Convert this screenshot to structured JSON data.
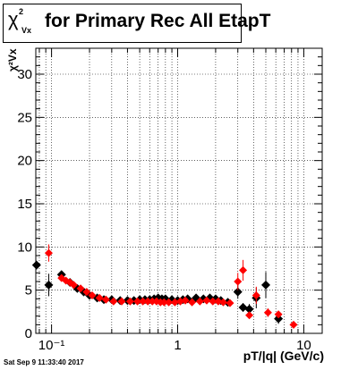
{
  "title": {
    "symbol": "χ",
    "superscript": "2",
    "subscript": "Vx",
    "text": "for Primary Rec All EtapT"
  },
  "ylabel": "χ²Vx",
  "xlabel": "pT/|q| (GeV/c)",
  "datestamp": "Sat Sep  9 11:33:40 2017",
  "colors": {
    "series_black": "#000000",
    "series_red": "#ff0000",
    "grid": "#000000"
  },
  "chart_data": {
    "type": "scatter",
    "xscale": "log",
    "xlim": [
      0.075,
      14
    ],
    "ylim": [
      0,
      33
    ],
    "yticks": [
      0,
      5,
      10,
      15,
      20,
      25,
      30
    ],
    "xtick_labels": [
      {
        "value": 0.1,
        "label": "10⁻¹"
      },
      {
        "value": 1,
        "label": "1"
      },
      {
        "value": 10,
        "label": "10"
      }
    ],
    "grid": true,
    "series": [
      {
        "color": "#000000",
        "marker": "diamond",
        "points": [
          {
            "x": 0.076,
            "y": 7.9,
            "err": 0.5
          },
          {
            "x": 0.095,
            "y": 5.6,
            "err": 1.3
          },
          {
            "x": 0.12,
            "y": 6.8,
            "err": 0.3
          },
          {
            "x": 0.14,
            "y": 5.9,
            "err": 0.3
          },
          {
            "x": 0.16,
            "y": 5.2,
            "err": 0.2
          },
          {
            "x": 0.18,
            "y": 4.8,
            "err": 0.2
          },
          {
            "x": 0.2,
            "y": 4.4,
            "err": 0.2
          },
          {
            "x": 0.23,
            "y": 4.1,
            "err": 0.2
          },
          {
            "x": 0.26,
            "y": 3.9,
            "err": 0.2
          },
          {
            "x": 0.3,
            "y": 3.9,
            "err": 0.2
          },
          {
            "x": 0.35,
            "y": 3.8,
            "err": 0.2
          },
          {
            "x": 0.4,
            "y": 3.8,
            "err": 0.2
          },
          {
            "x": 0.45,
            "y": 3.8,
            "err": 0.2
          },
          {
            "x": 0.5,
            "y": 3.9,
            "err": 0.2
          },
          {
            "x": 0.55,
            "y": 3.9,
            "err": 0.2
          },
          {
            "x": 0.6,
            "y": 3.9,
            "err": 0.2
          },
          {
            "x": 0.65,
            "y": 4.0,
            "err": 0.2
          },
          {
            "x": 0.7,
            "y": 4.1,
            "err": 0.2
          },
          {
            "x": 0.75,
            "y": 4.0,
            "err": 0.2
          },
          {
            "x": 0.8,
            "y": 4.0,
            "err": 0.2
          },
          {
            "x": 0.9,
            "y": 3.9,
            "err": 0.2
          },
          {
            "x": 1.0,
            "y": 3.8,
            "err": 0.2
          },
          {
            "x": 1.1,
            "y": 3.9,
            "err": 0.2
          },
          {
            "x": 1.2,
            "y": 4.0,
            "err": 0.2
          },
          {
            "x": 1.4,
            "y": 4.1,
            "err": 0.2
          },
          {
            "x": 1.6,
            "y": 4.0,
            "err": 0.2
          },
          {
            "x": 1.8,
            "y": 4.1,
            "err": 0.2
          },
          {
            "x": 2.0,
            "y": 4.0,
            "err": 0.2
          },
          {
            "x": 2.2,
            "y": 3.8,
            "err": 0.2
          },
          {
            "x": 2.5,
            "y": 3.6,
            "err": 0.3
          },
          {
            "x": 3.0,
            "y": 4.8,
            "err": 0.8
          },
          {
            "x": 3.3,
            "y": 3.0,
            "err": 0.5
          },
          {
            "x": 3.7,
            "y": 2.8,
            "err": 0.6
          },
          {
            "x": 4.2,
            "y": 4.1,
            "err": 1.2
          },
          {
            "x": 5.0,
            "y": 5.6,
            "err": 1.5
          },
          {
            "x": 6.3,
            "y": 1.7,
            "err": 0.6
          }
        ]
      },
      {
        "color": "#ff0000",
        "marker": "circle",
        "points": [
          {
            "x": 0.095,
            "y": 9.3,
            "err": 1.0
          },
          {
            "x": 0.12,
            "y": 6.4,
            "err": 0.3
          },
          {
            "x": 0.13,
            "y": 6.1,
            "err": 0.3
          },
          {
            "x": 0.14,
            "y": 5.9,
            "err": 0.2
          },
          {
            "x": 0.15,
            "y": 5.6,
            "err": 0.2
          },
          {
            "x": 0.17,
            "y": 5.2,
            "err": 0.2
          },
          {
            "x": 0.19,
            "y": 4.8,
            "err": 0.2
          },
          {
            "x": 0.21,
            "y": 4.4,
            "err": 0.2
          },
          {
            "x": 0.24,
            "y": 4.1,
            "err": 0.2
          },
          {
            "x": 0.27,
            "y": 3.9,
            "err": 0.2
          },
          {
            "x": 0.31,
            "y": 3.7,
            "err": 0.2
          },
          {
            "x": 0.36,
            "y": 3.7,
            "err": 0.2
          },
          {
            "x": 0.42,
            "y": 3.7,
            "err": 0.2
          },
          {
            "x": 0.48,
            "y": 3.7,
            "err": 0.2
          },
          {
            "x": 0.53,
            "y": 3.7,
            "err": 0.2
          },
          {
            "x": 0.58,
            "y": 3.7,
            "err": 0.2
          },
          {
            "x": 0.63,
            "y": 3.7,
            "err": 0.2
          },
          {
            "x": 0.68,
            "y": 3.7,
            "err": 0.2
          },
          {
            "x": 0.73,
            "y": 3.6,
            "err": 0.2
          },
          {
            "x": 0.78,
            "y": 3.6,
            "err": 0.2
          },
          {
            "x": 0.85,
            "y": 3.6,
            "err": 0.2
          },
          {
            "x": 0.95,
            "y": 3.6,
            "err": 0.2
          },
          {
            "x": 1.05,
            "y": 3.7,
            "err": 0.2
          },
          {
            "x": 1.15,
            "y": 3.8,
            "err": 0.2
          },
          {
            "x": 1.3,
            "y": 3.6,
            "err": 0.2
          },
          {
            "x": 1.5,
            "y": 3.7,
            "err": 0.2
          },
          {
            "x": 1.7,
            "y": 3.8,
            "err": 0.2
          },
          {
            "x": 1.9,
            "y": 3.7,
            "err": 0.2
          },
          {
            "x": 2.1,
            "y": 3.7,
            "err": 0.2
          },
          {
            "x": 2.3,
            "y": 3.6,
            "err": 0.3
          },
          {
            "x": 2.6,
            "y": 3.5,
            "err": 0.3
          },
          {
            "x": 3.0,
            "y": 6.0,
            "err": 1.0
          },
          {
            "x": 3.3,
            "y": 7.3,
            "err": 1.2
          },
          {
            "x": 3.7,
            "y": 2.1,
            "err": 0.4
          },
          {
            "x": 4.2,
            "y": 4.4,
            "err": 1.0
          },
          {
            "x": 5.2,
            "y": 2.4,
            "err": 0.5
          },
          {
            "x": 6.3,
            "y": 2.2,
            "err": 0.4
          },
          {
            "x": 8.3,
            "y": 1.0,
            "err": 0.3
          }
        ]
      }
    ]
  }
}
